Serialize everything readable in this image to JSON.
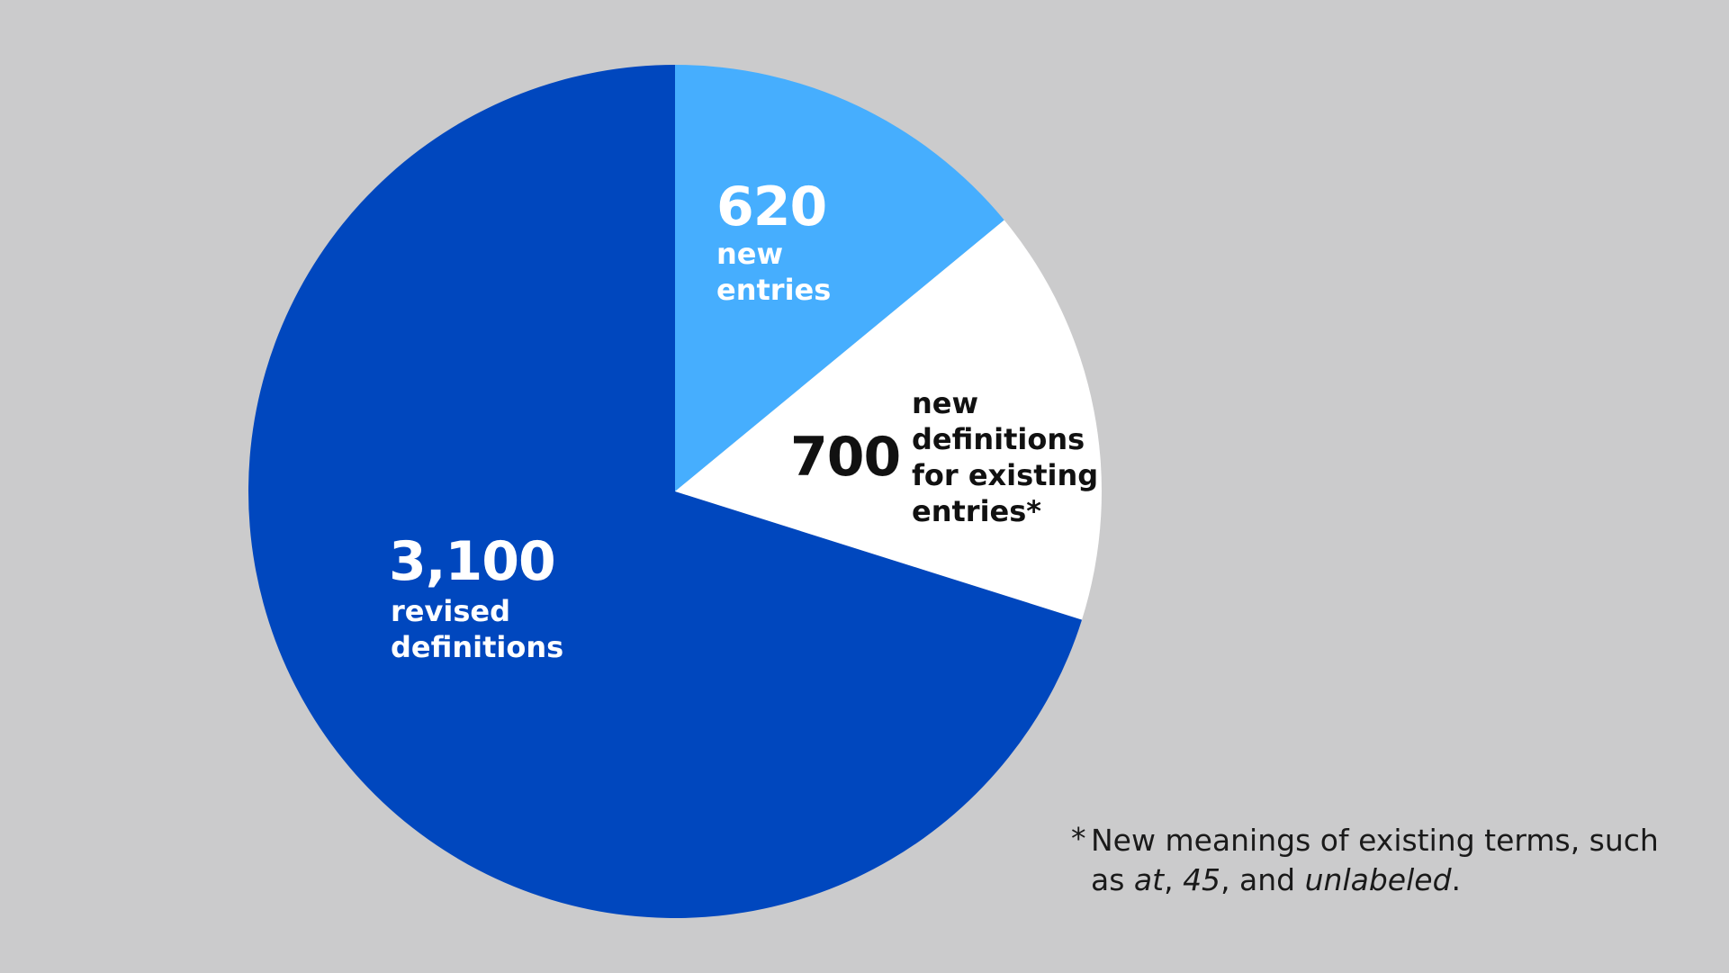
{
  "chart_data": {
    "type": "pie",
    "slices": [
      {
        "value": 620,
        "value_label": "620",
        "label_lines": [
          "new",
          "entries"
        ],
        "color": "#46aefe",
        "text_color": "#ffffff"
      },
      {
        "value": 700,
        "value_label": "700",
        "label_lines": [
          "new",
          "definitions",
          "for existing",
          "entries*"
        ],
        "color": "#ffffff",
        "text_color": "#111111"
      },
      {
        "value": 3100,
        "value_label": "3,100",
        "label_lines": [
          "revised",
          "definitions"
        ],
        "color": "#0047be",
        "text_color": "#ffffff"
      }
    ],
    "start_angle": "12 o'clock",
    "direction": "clockwise"
  },
  "footnote": {
    "star": "*",
    "lead": "New meanings of existing terms, such as ",
    "term1": "at",
    "sep1": ", ",
    "term2": "45",
    "sep2": ", and ",
    "term3": "unlabeled",
    "end": "."
  },
  "background_color": "#cbcbcc"
}
